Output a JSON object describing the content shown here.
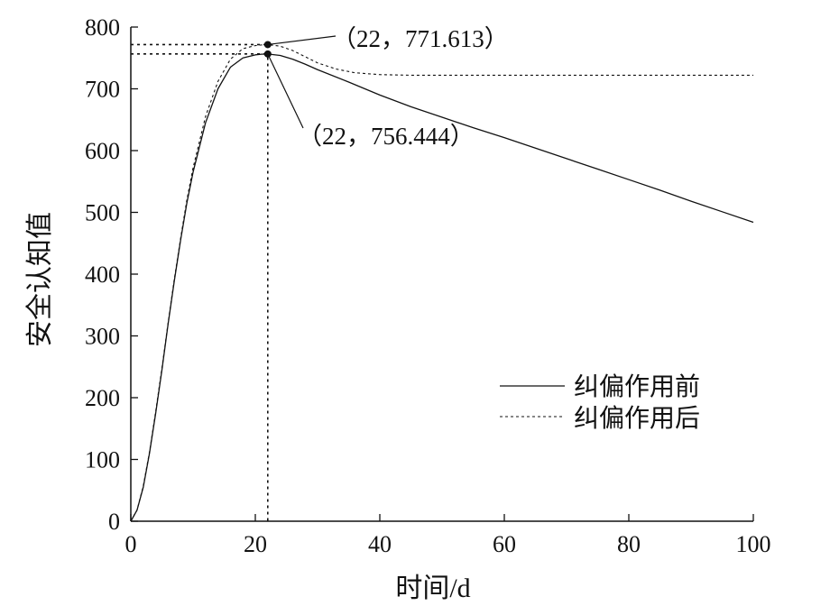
{
  "chart_data": {
    "type": "line",
    "title": "",
    "xlabel": "时间/d",
    "ylabel": "安全认知值",
    "xlim": [
      0,
      100
    ],
    "ylim": [
      0,
      800
    ],
    "x_ticks": [
      "0",
      "20",
      "40",
      "60",
      "80",
      "100"
    ],
    "y_ticks": [
      "0",
      "100",
      "200",
      "300",
      "400",
      "500",
      "600",
      "700",
      "800"
    ],
    "grid": false,
    "legend_position": "right-middle",
    "series": [
      {
        "name": "纠偏作用前",
        "style": "solid",
        "x": [
          0,
          1,
          2,
          3,
          4,
          5,
          6,
          7,
          8,
          9,
          10,
          12,
          14,
          16,
          18,
          20,
          21,
          22,
          24,
          26,
          28,
          30,
          35,
          40,
          45,
          50,
          55,
          60,
          65,
          70,
          75,
          80,
          85,
          90,
          95,
          100
        ],
        "y": [
          0,
          18,
          55,
          110,
          175,
          245,
          320,
          390,
          455,
          515,
          565,
          645,
          700,
          735,
          750,
          755,
          756,
          756.444,
          754,
          748,
          740,
          731,
          711,
          690,
          671,
          654,
          637,
          621,
          604,
          587,
          570,
          553,
          536,
          518,
          501,
          484
        ]
      },
      {
        "name": "纠偏作用后",
        "style": "dashed",
        "x": [
          0,
          1,
          2,
          3,
          4,
          5,
          6,
          7,
          8,
          9,
          10,
          12,
          14,
          16,
          18,
          20,
          21,
          22,
          24,
          26,
          28,
          30,
          33,
          36,
          40,
          45,
          50,
          60,
          70,
          80,
          90,
          100
        ],
        "y": [
          0,
          18,
          57,
          112,
          178,
          248,
          322,
          393,
          458,
          520,
          572,
          655,
          712,
          748,
          765,
          770,
          771,
          771.613,
          769,
          762,
          752,
          742,
          732,
          726,
          723,
          722,
          722,
          722,
          722,
          722,
          722,
          722
        ]
      }
    ],
    "annotations": [
      {
        "x": 22,
        "y": 771.613,
        "label": "（22，771.613）"
      },
      {
        "x": 22,
        "y": 756.444,
        "label": "（22，756.444）"
      }
    ]
  }
}
